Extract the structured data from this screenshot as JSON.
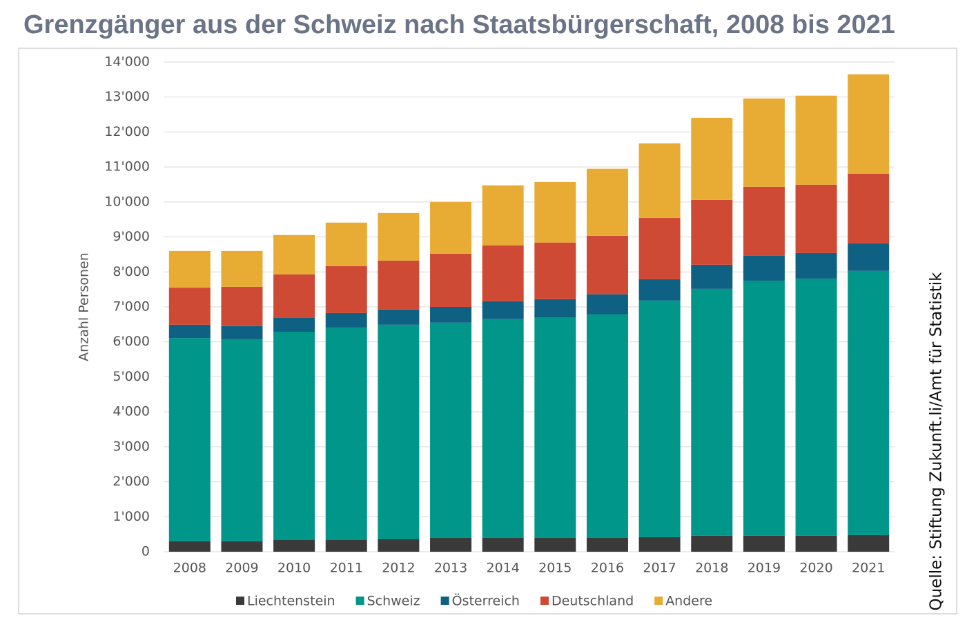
{
  "chart_data": {
    "type": "stacked_bar",
    "title": "Grenzgänger aus der Schweiz nach Staatsbürgerschaft, 2008 bis 2021",
    "y_label": "Anzahl Personen",
    "source": "Quelle: Stiftung Zukunft.li/Amt für Statistik",
    "categories": [
      "2008",
      "2009",
      "2010",
      "2011",
      "2012",
      "2013",
      "2014",
      "2015",
      "2016",
      "2017",
      "2018",
      "2019",
      "2020",
      "2021"
    ],
    "series": [
      {
        "name": "Liechtenstein",
        "color": "#3a3a3a",
        "values": [
          300,
          300,
          335,
          335,
          355,
          395,
          395,
          395,
          395,
          415,
          455,
          455,
          455,
          475
        ]
      },
      {
        "name": "Schweiz",
        "color": "#00968a",
        "values": [
          5810,
          5775,
          5955,
          6075,
          6135,
          6155,
          6255,
          6295,
          6390,
          6765,
          7060,
          7295,
          7355,
          7555
        ]
      },
      {
        "name": "Österreich",
        "color": "#0e6183",
        "values": [
          380,
          375,
          395,
          415,
          435,
          450,
          510,
          530,
          575,
          610,
          690,
          710,
          730,
          785
        ]
      },
      {
        "name": "Deutschland",
        "color": "#cf4a35",
        "values": [
          1060,
          1125,
          1245,
          1340,
          1400,
          1520,
          1600,
          1620,
          1675,
          1755,
          1855,
          1975,
          1955,
          1995
        ]
      },
      {
        "name": "Andere",
        "color": "#e8ac35",
        "values": [
          1050,
          1025,
          1125,
          1245,
          1360,
          1480,
          1715,
          1730,
          1915,
          2130,
          2345,
          2525,
          2545,
          2840
        ]
      }
    ],
    "ylim": [
      0,
      14000
    ],
    "yticks": [
      0,
      {
        "value": 1000,
        "label": "1'000"
      },
      {
        "value": 2000,
        "label": "2'000"
      },
      {
        "value": 3000,
        "label": "3'000"
      },
      {
        "value": 4000,
        "label": "4'000"
      },
      {
        "value": 5000,
        "label": "5'000"
      },
      {
        "value": 6000,
        "label": "6'000"
      },
      {
        "value": 7000,
        "label": "7'000"
      },
      {
        "value": 8000,
        "label": "8'000"
      },
      {
        "value": 9000,
        "label": "9'000"
      },
      {
        "value": 10000,
        "label": "10'000"
      },
      {
        "value": 11000,
        "label": "11'000"
      },
      {
        "value": 12000,
        "label": "12'000"
      },
      {
        "value": 13000,
        "label": "13'000"
      },
      {
        "value": 14000,
        "label": "14'000"
      }
    ],
    "grid": true,
    "legend": "bottom"
  }
}
